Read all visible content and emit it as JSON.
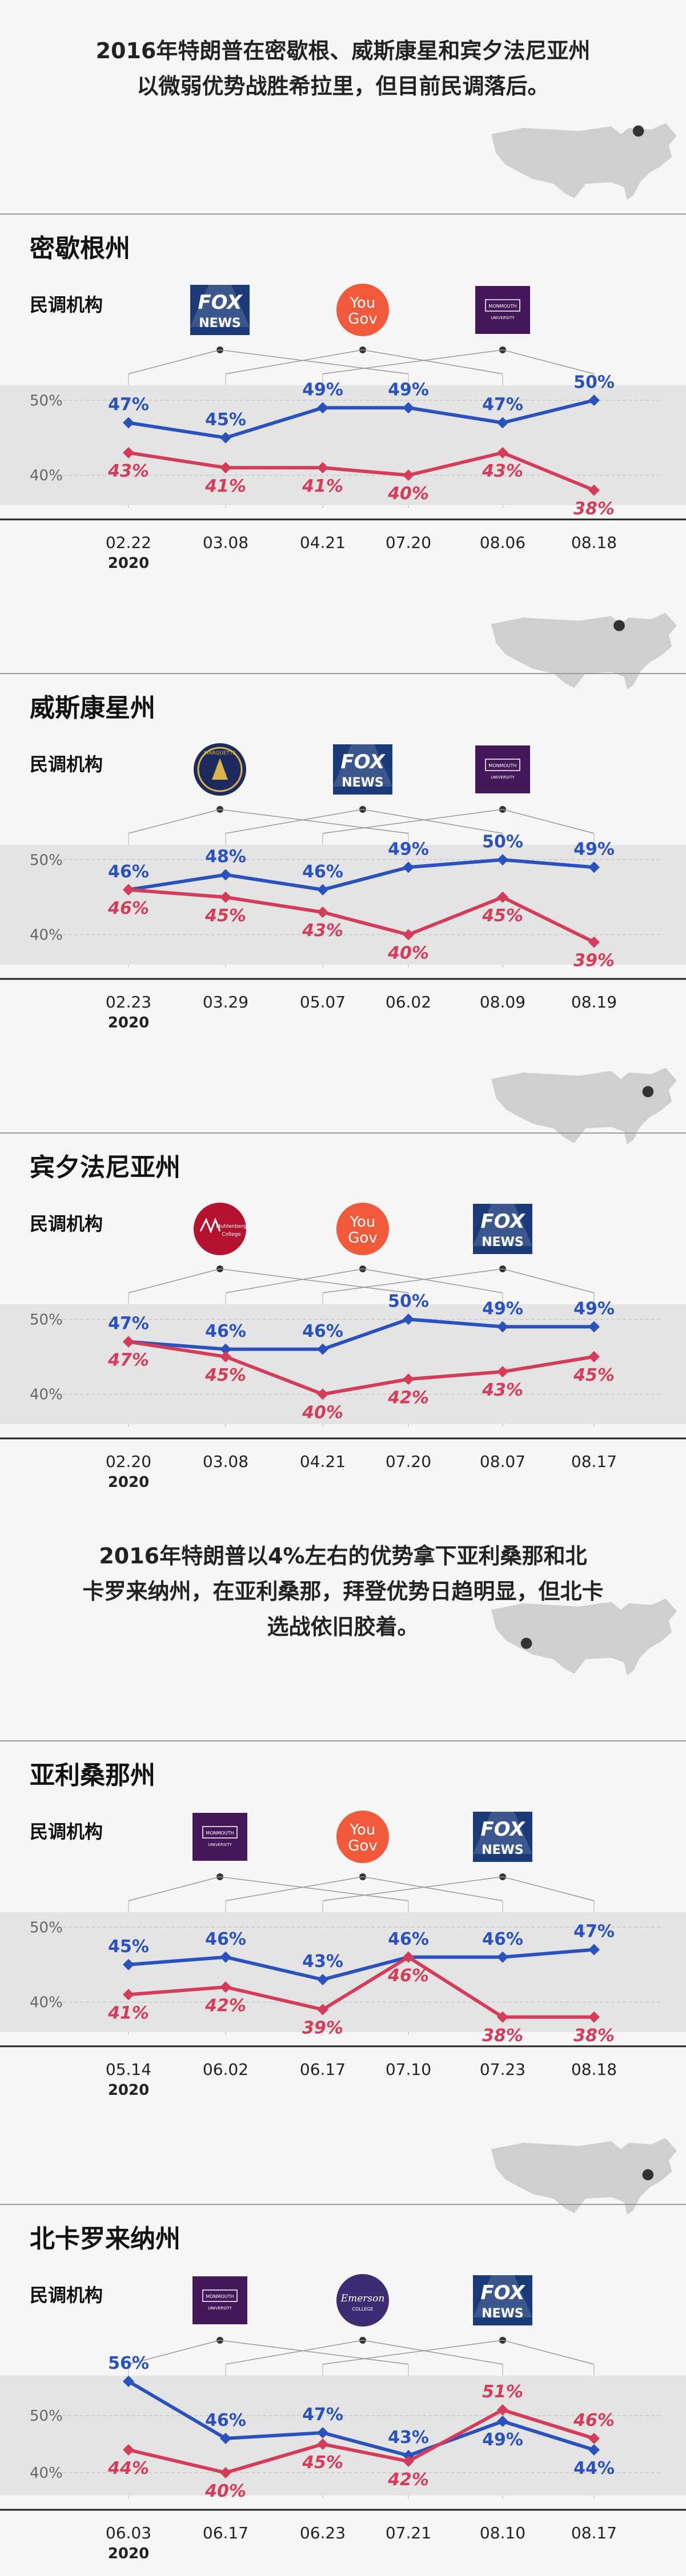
{
  "intro_1": [
    "2016年特朗普在密歇根、威斯康星和宾夕法尼亚州",
    "以微弱优势战胜希拉里，但目前民调落后。"
  ],
  "intro_2": [
    "2016年特朗普以4%左右的优势拿下亚利桑那和北",
    "卡罗来纳州，在亚利桑那，拜登优势日趋明显，但北卡",
    "选战依旧胶着。"
  ],
  "pollster_label": "民调机构",
  "year": "2020",
  "y_tick_labels": [
    "50%",
    "40%"
  ],
  "colors": {
    "biden": "#2a52be",
    "trump": "#d43c5a",
    "band": "#e4e4e4"
  },
  "pollster_logos": {
    "fox": {
      "text": [
        "FOX",
        "NEWS"
      ],
      "icon": "fox-news-logo"
    },
    "yougov": {
      "text": [
        "You",
        "Gov"
      ],
      "icon": "yougov-logo"
    },
    "monmouth": {
      "text": [
        "MONMOUTH",
        "UNIVERSITY"
      ],
      "icon": "monmouth-logo"
    },
    "marquette": {
      "text": [
        "MARQUETTE"
      ],
      "icon": "marquette-logo"
    },
    "muhlenberg": {
      "text": [
        "Muhlenberg",
        "College"
      ],
      "icon": "muhlenberg-logo"
    },
    "emerson": {
      "text": [
        "Emerson",
        "COLLEGE"
      ],
      "icon": "emerson-logo"
    }
  },
  "chart_data": [
    {
      "type": "line",
      "title": "密歇根州",
      "map_highlight": "Michigan",
      "x": [
        "02.22",
        "03.08",
        "04.21",
        "07.20",
        "08.06",
        "08.18"
      ],
      "series": [
        {
          "values": [
            47,
            45,
            49,
            49,
            47,
            50
          ]
        },
        {
          "values": [
            43,
            41,
            41,
            40,
            43,
            38
          ]
        }
      ],
      "ylim": [
        36,
        52
      ],
      "pollsters": [
        "fox",
        "yougov",
        "monmouth"
      ]
    },
    {
      "type": "line",
      "title": "威斯康星州",
      "map_highlight": "Wisconsin",
      "x": [
        "02.23",
        "03.29",
        "05.07",
        "06.02",
        "08.09",
        "08.19"
      ],
      "series": [
        {
          "values": [
            46,
            48,
            46,
            49,
            50,
            49
          ]
        },
        {
          "values": [
            46,
            45,
            43,
            40,
            45,
            39
          ]
        }
      ],
      "ylim": [
        36,
        52
      ],
      "pollsters": [
        "marquette",
        "fox",
        "monmouth"
      ]
    },
    {
      "type": "line",
      "title": "宾夕法尼亚州",
      "map_highlight": "Pennsylvania",
      "x": [
        "02.20",
        "03.08",
        "04.21",
        "07.20",
        "08.07",
        "08.17"
      ],
      "series": [
        {
          "values": [
            47,
            46,
            46,
            50,
            49,
            49
          ]
        },
        {
          "values": [
            47,
            45,
            40,
            42,
            43,
            45
          ]
        }
      ],
      "ylim": [
        36,
        52
      ],
      "pollsters": [
        "muhlenberg",
        "yougov",
        "fox"
      ]
    },
    {
      "type": "line",
      "title": "亚利桑那州",
      "map_highlight": "Arizona",
      "x": [
        "05.14",
        "06.02",
        "06.17",
        "07.10",
        "07.23",
        "08.18"
      ],
      "series": [
        {
          "values": [
            45,
            46,
            43,
            46,
            46,
            47
          ]
        },
        {
          "values": [
            41,
            42,
            39,
            46,
            38,
            38
          ]
        }
      ],
      "ylim": [
        36,
        52
      ],
      "pollsters": [
        "monmouth",
        "yougov",
        "fox"
      ]
    },
    {
      "type": "line",
      "title": "北卡罗来纳州",
      "map_highlight": "North Carolina",
      "x": [
        "06.03",
        "06.17",
        "06.23",
        "07.21",
        "08.10",
        "08.17"
      ],
      "series": [
        {
          "values": [
            56,
            46,
            47,
            43,
            49,
            44
          ]
        },
        {
          "values": [
            44,
            40,
            45,
            42,
            51,
            46
          ]
        }
      ],
      "ylim": [
        36,
        57
      ],
      "pollsters": [
        "monmouth",
        "emerson",
        "fox"
      ]
    }
  ]
}
